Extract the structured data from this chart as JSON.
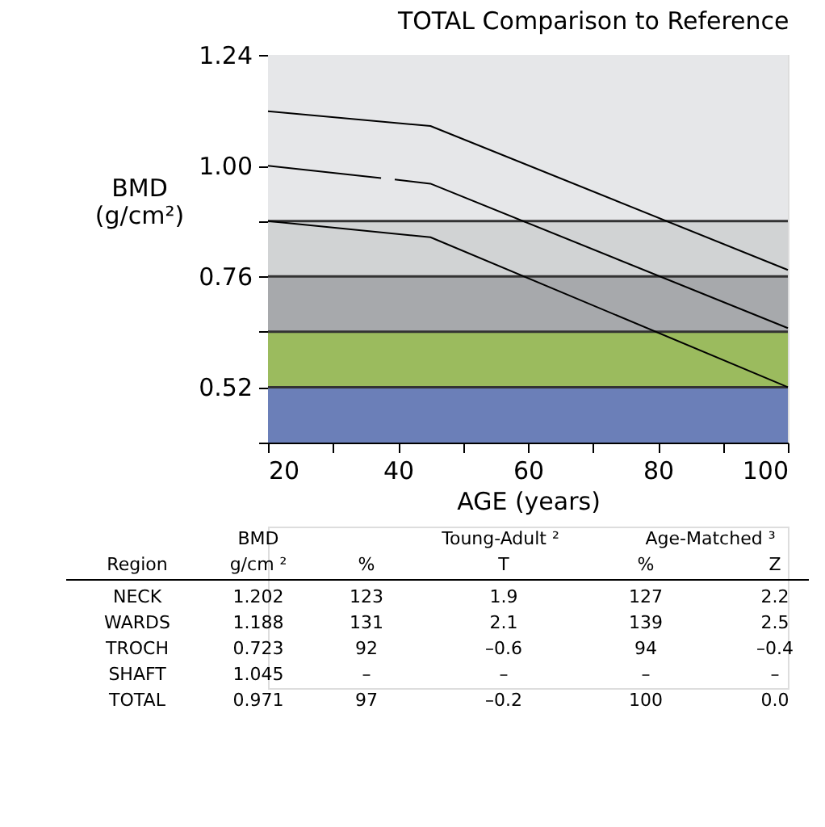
{
  "chart_data": {
    "type": "line",
    "title": "TOTAL Comparison to Reference",
    "xlabel": "AGE (years)",
    "ylabel": "BMD\n(g/cm²)",
    "xlim": [
      20,
      100
    ],
    "ylim": [
      0.4,
      1.24
    ],
    "xticks": [
      20,
      {
        "value": 30,
        "label": null
      },
      40,
      {
        "value": 50,
        "label": null
      },
      60,
      {
        "value": 70,
        "label": null
      },
      80,
      {
        "value": 90,
        "label": null
      },
      100
    ],
    "yticks": [
      {
        "value": 0.4,
        "label": null
      },
      {
        "value": 0.52,
        "label": "0.52"
      },
      {
        "value": 0.64,
        "label": null
      },
      {
        "value": 0.76,
        "label": "0.76"
      },
      {
        "value": 0.88,
        "label": null
      },
      {
        "value": 1.0,
        "label": "1.00"
      },
      {
        "value": 1.24,
        "label": "1.24"
      }
    ],
    "series": [
      {
        "color": "#000000",
        "x": [
          20,
          45,
          100
        ],
        "values": [
          1.118,
          1.086,
          0.774
        ]
      },
      {
        "color": "#000000",
        "x": [
          20,
          37.4,
          38.5,
          39.5,
          45,
          100
        ],
        "values": [
          1.0,
          0.973,
          null,
          0.97,
          0.961,
          0.648
        ]
      },
      {
        "color": "#000000",
        "x": [
          20,
          45,
          100
        ],
        "values": [
          0.88,
          0.845,
          0.52
        ]
      }
    ],
    "bands": [
      {
        "axis": "y",
        "from": 0.4,
        "to": 0.52,
        "color": "#6b7fb8"
      },
      {
        "axis": "y",
        "from": 0.52,
        "to": 0.64,
        "color": "#9bbb5e"
      },
      {
        "axis": "y",
        "from": 0.64,
        "to": 0.76,
        "color": "#a7a9ac"
      },
      {
        "axis": "y",
        "from": 0.76,
        "to": 0.88,
        "color": "#d1d3d4"
      },
      {
        "axis": "y",
        "from": 0.88,
        "to": 1.24,
        "color": "#e6e7e9"
      }
    ],
    "ref_lines": [
      {
        "axis": "y",
        "value": 0.52,
        "color": "#333333"
      },
      {
        "axis": "y",
        "value": 0.64,
        "color": "#333333"
      },
      {
        "axis": "y",
        "value": 0.76,
        "color": "#333333"
      },
      {
        "axis": "y",
        "value": 0.88,
        "color": "#333333"
      }
    ],
    "legend": false,
    "marker": "none",
    "line_style": "solid",
    "annotations": [
      "BMD",
      "Toung-Adult ²",
      "Age-Matched ³",
      "Region",
      "g/cm ²",
      "%",
      "T",
      "%",
      "Z",
      "NECK",
      "1.202",
      "123",
      "1.9",
      "127",
      "2.2",
      "WARDS",
      "1.188",
      "131",
      "2.1",
      "139",
      "2.5",
      "TROCH",
      "0.723",
      "92",
      "–0.6",
      "94",
      "–0.4",
      "SHAFT",
      "1.045",
      "–",
      "–",
      "–",
      "–",
      "TOTAL",
      "0.971",
      "97",
      "–0.2",
      "100",
      "0.0"
    ]
  }
}
